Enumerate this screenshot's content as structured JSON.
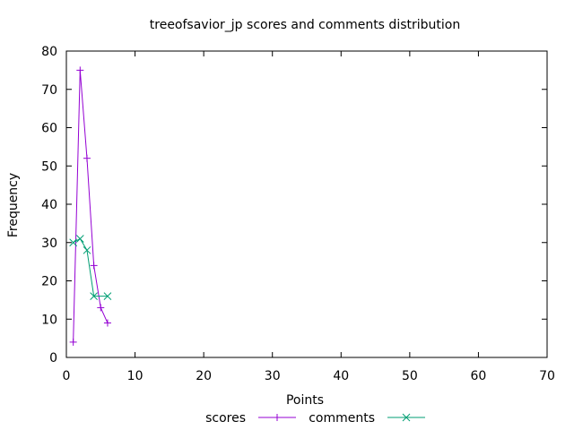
{
  "chart_data": {
    "type": "line",
    "title": "treeofsavior_jp scores and comments distribution",
    "xlabel": "Points",
    "ylabel": "Frequency",
    "xlim": [
      0,
      70
    ],
    "ylim": [
      0,
      80
    ],
    "xticks": [
      0,
      10,
      20,
      30,
      40,
      50,
      60,
      70
    ],
    "yticks": [
      0,
      10,
      20,
      30,
      40,
      50,
      60,
      70,
      80
    ],
    "grid": false,
    "legend_position": "bottom",
    "series": [
      {
        "name": "scores",
        "color": "#9400d3",
        "marker": "plus",
        "x": [
          1,
          2,
          3,
          4,
          5,
          6
        ],
        "y": [
          4,
          75,
          52,
          24,
          13,
          9
        ]
      },
      {
        "name": "comments",
        "color": "#009e73",
        "marker": "cross",
        "x": [
          1,
          2,
          3,
          4,
          6
        ],
        "y": [
          30,
          31,
          28,
          16,
          16
        ]
      }
    ]
  }
}
